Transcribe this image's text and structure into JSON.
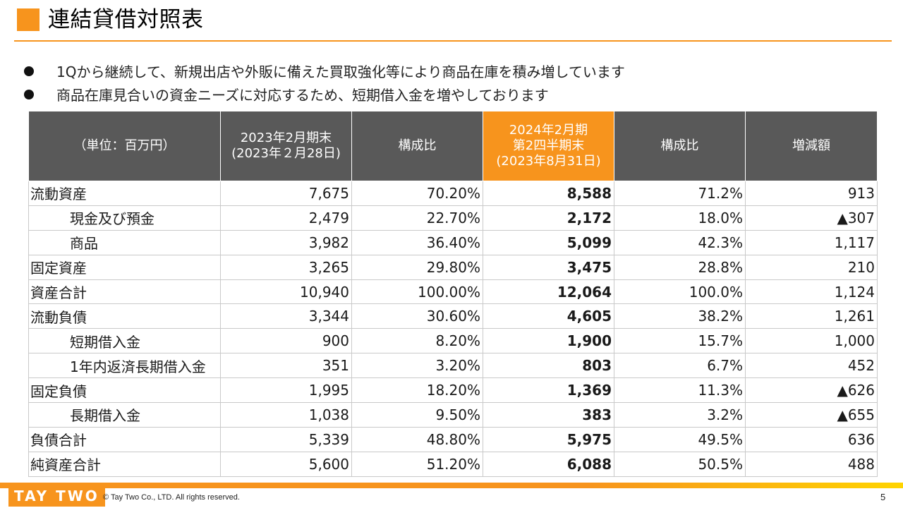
{
  "header": {
    "title": "連結貸借対照表"
  },
  "bullets": [
    "1Qから継続して、新規出店や外販に備えた買取強化等により商品在庫を積み増しています",
    "商品在庫見合いの資金ニーズに対応するため、短期借入金を増やしております"
  ],
  "table": {
    "headers": {
      "unit": "（単位：百万円）",
      "prev_line1": "2023年2月期末",
      "prev_line2": "(2023年２月28日)",
      "ratio1": "構成比",
      "curr_line1": "2024年2月期",
      "curr_line2": "第2四半期末",
      "curr_line3": "(2023年8月31日)",
      "ratio2": "構成比",
      "change": "増減額"
    },
    "highlight_color": "#f7941d",
    "rows": [
      {
        "label": "流動資産",
        "prev": "7,675",
        "prev_ratio": "70.20%",
        "curr": "8,588",
        "curr_ratio": "71.2%",
        "change": "913"
      },
      {
        "label": "現金及び預金",
        "prev": "2,479",
        "prev_ratio": "22.70%",
        "curr": "2,172",
        "curr_ratio": "18.0%",
        "change": "▲307"
      },
      {
        "label": "商品",
        "prev": "3,982",
        "prev_ratio": "36.40%",
        "curr": "5,099",
        "curr_ratio": "42.3%",
        "change": "1,117"
      },
      {
        "label": "固定資産",
        "prev": "3,265",
        "prev_ratio": "29.80%",
        "curr": "3,475",
        "curr_ratio": "28.8%",
        "change": "210"
      },
      {
        "label": "資産合計",
        "prev": "10,940",
        "prev_ratio": "100.00%",
        "curr": "12,064",
        "curr_ratio": "100.0%",
        "change": "1,124"
      },
      {
        "label": "流動負債",
        "prev": "3,344",
        "prev_ratio": "30.60%",
        "curr": "4,605",
        "curr_ratio": "38.2%",
        "change": "1,261"
      },
      {
        "label": "短期借入金",
        "prev": "900",
        "prev_ratio": "8.20%",
        "curr": "1,900",
        "curr_ratio": "15.7%",
        "change": "1,000"
      },
      {
        "label": "1年内返済長期借入金",
        "prev": "351",
        "prev_ratio": "3.20%",
        "curr": "803",
        "curr_ratio": "6.7%",
        "change": "452"
      },
      {
        "label": "固定負債",
        "prev": "1,995",
        "prev_ratio": "18.20%",
        "curr": "1,369",
        "curr_ratio": "11.3%",
        "change": "▲626"
      },
      {
        "label": "長期借入金",
        "prev": "1,038",
        "prev_ratio": "9.50%",
        "curr": "383",
        "curr_ratio": "3.2%",
        "change": "▲655"
      },
      {
        "label": "負債合計",
        "prev": "5,339",
        "prev_ratio": "48.80%",
        "curr": "5,975",
        "curr_ratio": "49.5%",
        "change": "636"
      },
      {
        "label": "純資産合計",
        "prev": "5,600",
        "prev_ratio": "51.20%",
        "curr": "6,088",
        "curr_ratio": "50.5%",
        "change": "488"
      }
    ]
  },
  "footer": {
    "logo_text": "TAY TWO",
    "copyright": "© Tay Two Co., LTD. All rights reserved.",
    "page_number": "5"
  }
}
